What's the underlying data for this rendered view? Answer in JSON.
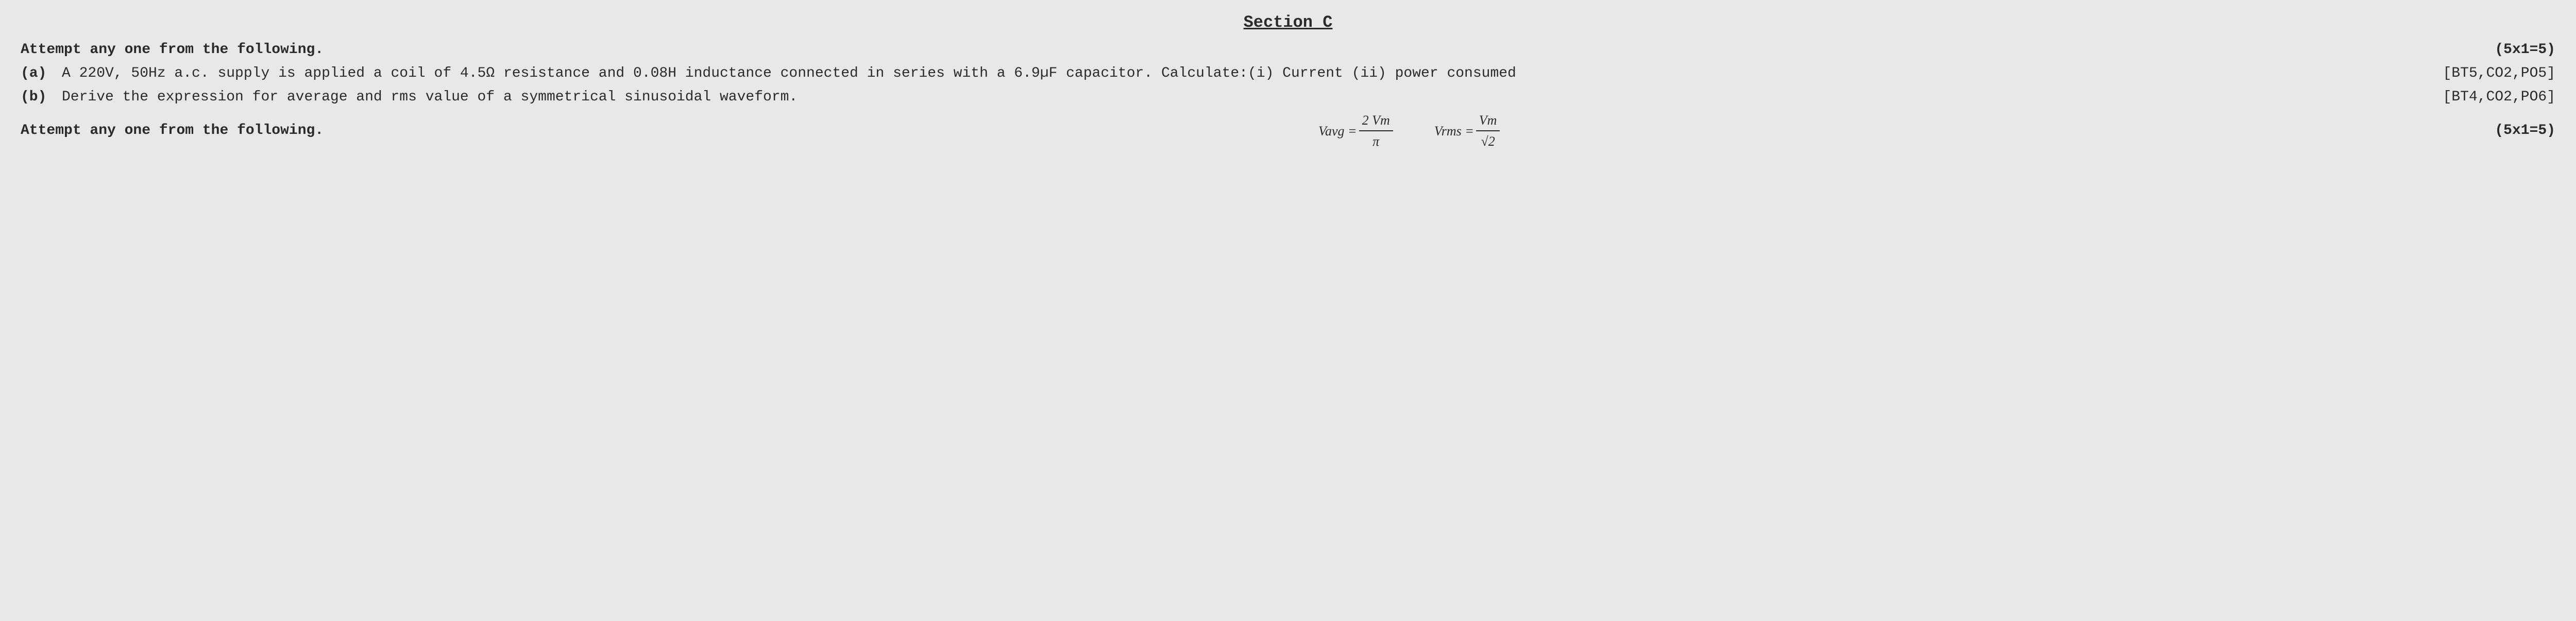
{
  "section": {
    "title": "Section C"
  },
  "instructions": {
    "line1": "Attempt any one from the following.",
    "line2": "Attempt any one from the following.",
    "marks1": "(5x1=5)",
    "marks2": "(5x1=5)"
  },
  "questions": {
    "a": {
      "label": "(a)",
      "text": "A 220V, 50Hz a.c. supply is applied a coil of 4.5Ω resistance and 0.08H inductance connected in series with a 6.9µF capacitor. Calculate:(i) Current (ii) power consumed",
      "tag": "[BT5,CO2,PO5]"
    },
    "b": {
      "label": "(b)",
      "text": "Derive the expression for average and rms value of a symmetrical sinusoidal waveform.",
      "tag": "[BT4,CO2,PO6]"
    }
  },
  "formulas": {
    "avg": {
      "lhs": "Vavg =",
      "num": "2 Vm",
      "den": "π"
    },
    "rms": {
      "lhs": "Vrms =",
      "num": "Vm",
      "den": "√2"
    }
  },
  "style": {
    "bg": "#e8e8e8",
    "text_color": "#2a2a2a",
    "font": "Courier New",
    "title_fontsize": 32,
    "body_fontsize": 28,
    "formula_font": "Comic Sans MS"
  }
}
